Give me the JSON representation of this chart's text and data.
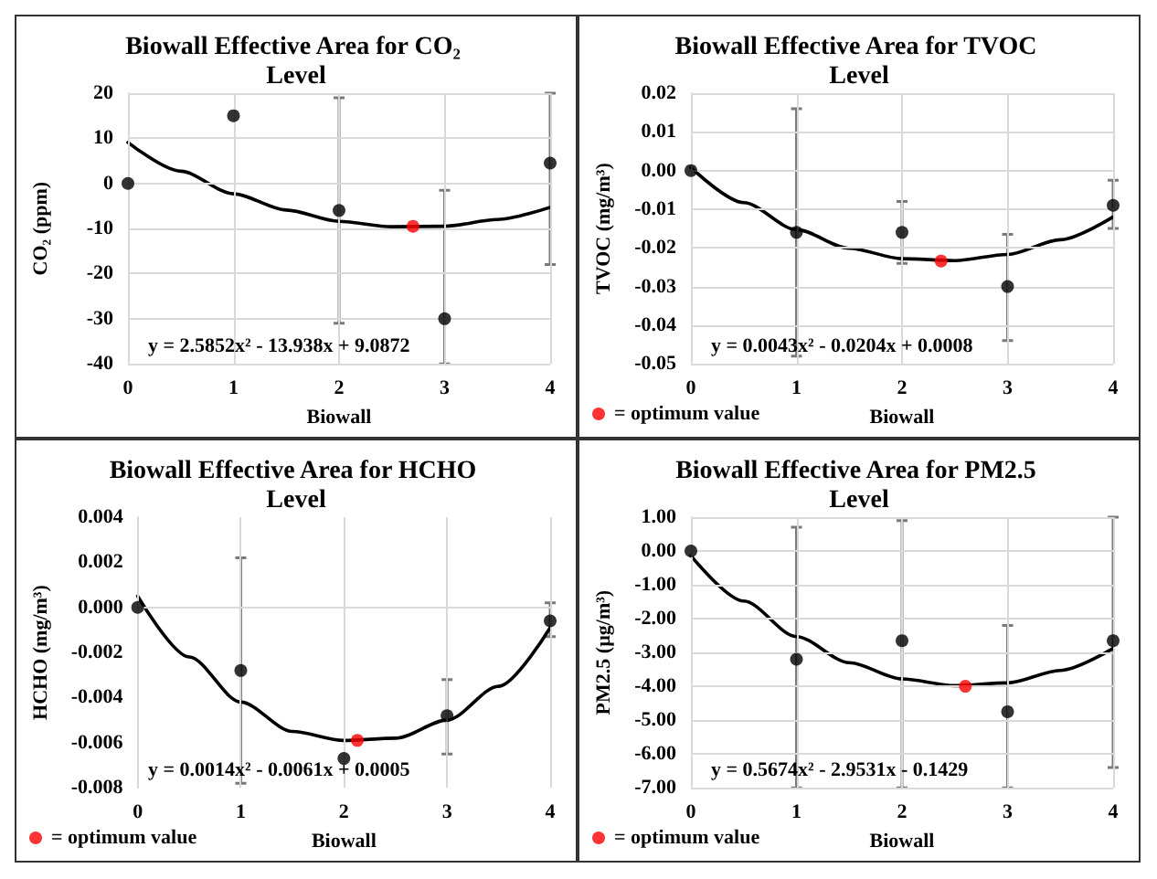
{
  "chart_data": [
    {
      "type": "scatter",
      "title": "Biowall Effective Area for CO₂ Level",
      "xlabel": "Biowall",
      "ylabel": "CO₂ (ppm)",
      "xlim": [
        0,
        4
      ],
      "xticks": [
        0,
        1,
        2,
        3,
        4
      ],
      "ylim": [
        -40,
        20
      ],
      "yticks": [
        -40,
        -30,
        -20,
        -10,
        0,
        10,
        20
      ],
      "grid": true,
      "legend": false,
      "annotations": [
        "y = 2.5852x² - 13.938x + 9.0872"
      ],
      "series": [
        {
          "type": "scatter",
          "color": "#000000",
          "marker": "circle",
          "x": [
            0,
            1,
            2,
            3,
            4
          ],
          "values": [
            0,
            15,
            -6,
            -30,
            4.5
          ],
          "errors": [
            null,
            null,
            [
              -31,
              19
            ],
            [
              -40,
              -1.5
            ],
            [
              -18,
              20
            ]
          ]
        },
        {
          "type": "line",
          "color": "#000000",
          "marker": "none",
          "line_style": "solid",
          "x": [
            0,
            0.5,
            1,
            1.5,
            2,
            2.5,
            3,
            3.5,
            4
          ],
          "values": [
            9.1,
            2.7,
            -2.3,
            -5.9,
            -8.4,
            -9.6,
            -9.5,
            -8.0,
            -5.3
          ]
        },
        {
          "type": "scatter",
          "color": "#ff0000",
          "marker": "circle",
          "x": [
            2.7
          ],
          "values": [
            -9.5
          ]
        }
      ]
    },
    {
      "type": "scatter",
      "title": "Biowall Effective Area for TVOC Level",
      "xlabel": "Biowall",
      "ylabel": "TVOC (mg/m³)",
      "xlim": [
        0,
        4
      ],
      "xticks": [
        0,
        1,
        2,
        3,
        4
      ],
      "ylim": [
        -0.05,
        0.02
      ],
      "yticks": [
        {
          "value": -0.05,
          "label": "-0.05"
        },
        {
          "value": -0.04,
          "label": "-0.04"
        },
        {
          "value": -0.03,
          "label": "-0.03"
        },
        {
          "value": -0.02,
          "label": "-0.02"
        },
        {
          "value": -0.01,
          "label": "-0.01"
        },
        {
          "value": 0,
          "label": "0.00"
        },
        {
          "value": 0.01,
          "label": "0.01"
        },
        {
          "value": 0.02,
          "label": "0.02"
        }
      ],
      "grid": true,
      "legend": "bottom left",
      "annotations": [
        "y = 0.0043x² - 0.0204x + 0.0008"
      ],
      "series": [
        {
          "type": "scatter",
          "color": "#000000",
          "marker": "circle",
          "x": [
            0,
            1,
            2,
            3,
            4
          ],
          "values": [
            0,
            -0.016,
            -0.016,
            -0.03,
            -0.009
          ],
          "errors": [
            null,
            [
              -0.048,
              0.016
            ],
            [
              -0.024,
              -0.008
            ],
            [
              -0.044,
              -0.0165
            ],
            [
              -0.015,
              -0.0025
            ]
          ]
        },
        {
          "type": "line",
          "color": "#000000",
          "marker": "none",
          "line_style": "solid",
          "x": [
            0,
            0.5,
            1,
            1.5,
            2,
            2.5,
            3,
            3.5,
            4
          ],
          "values": [
            0.0008,
            -0.0083,
            -0.0153,
            -0.0201,
            -0.0228,
            -0.0233,
            -0.0217,
            -0.0179,
            -0.012
          ]
        },
        {
          "type": "scatter",
          "name": "= optimum value",
          "color": "#ff0000",
          "marker": "circle",
          "x": [
            2.37
          ],
          "values": [
            -0.0234
          ]
        }
      ]
    },
    {
      "type": "scatter",
      "title": "Biowall Effective Area for HCHO Level",
      "xlabel": "Biowall",
      "ylabel": "HCHO (mg/m³)",
      "xlim": [
        0,
        4
      ],
      "xticks": [
        0,
        1,
        2,
        3,
        4
      ],
      "ylim": [
        -0.008,
        0.004
      ],
      "yticks": [
        {
          "value": -0.008,
          "label": "-0.008"
        },
        {
          "value": -0.006,
          "label": "-0.006"
        },
        {
          "value": -0.004,
          "label": "-0.004"
        },
        {
          "value": -0.002,
          "label": "-0.002"
        },
        {
          "value": 0,
          "label": "0.000"
        },
        {
          "value": 0.002,
          "label": "0.002"
        },
        {
          "value": 0.004,
          "label": "0.004"
        }
      ],
      "grid": true,
      "legend": "bottom left",
      "annotations": [
        "y = 0.0014x² - 0.0061x + 0.0005"
      ],
      "series": [
        {
          "type": "scatter",
          "color": "#000000",
          "marker": "circle",
          "x": [
            0,
            1,
            2,
            3,
            4
          ],
          "values": [
            0,
            -0.0028,
            -0.0067,
            -0.0048,
            -0.0006
          ],
          "errors": [
            null,
            [
              -0.0078,
              0.0022
            ],
            null,
            [
              -0.0065,
              -0.0032
            ],
            [
              -0.0013,
              0.0002
            ]
          ]
        },
        {
          "type": "line",
          "color": "#000000",
          "marker": "none",
          "line_style": "solid",
          "x": [
            0,
            0.5,
            1,
            1.5,
            2,
            2.5,
            3,
            3.5,
            4
          ],
          "values": [
            0.0005,
            -0.0022,
            -0.0042,
            -0.0055,
            -0.0059,
            -0.0058,
            -0.005,
            -0.0035,
            -0.0009
          ]
        },
        {
          "type": "scatter",
          "name": "= optimum value",
          "color": "#ff0000",
          "marker": "circle",
          "x": [
            2.13
          ],
          "values": [
            -0.0059
          ]
        }
      ]
    },
    {
      "type": "scatter",
      "title": "Biowall Effective Area for PM2.5 Level",
      "xlabel": "Biowall",
      "ylabel": "PM2.5 (µg/m³)",
      "xlim": [
        0,
        4
      ],
      "xticks": [
        0,
        1,
        2,
        3,
        4
      ],
      "ylim": [
        -7,
        1
      ],
      "yticks": [
        {
          "value": -7,
          "label": "-7.00"
        },
        {
          "value": -6,
          "label": "-6.00"
        },
        {
          "value": -5,
          "label": "-5.00"
        },
        {
          "value": -4,
          "label": "-4.00"
        },
        {
          "value": -3,
          "label": "-3.00"
        },
        {
          "value": -2,
          "label": "-2.00"
        },
        {
          "value": -1,
          "label": "-1.00"
        },
        {
          "value": 0,
          "label": "0.00"
        },
        {
          "value": 1,
          "label": "1.00"
        }
      ],
      "grid": true,
      "legend": "bottom left",
      "annotations": [
        "y = 0.5674x² - 2.9531x - 0.1429"
      ],
      "series": [
        {
          "type": "scatter",
          "color": "#000000",
          "marker": "circle",
          "x": [
            0,
            1,
            2,
            3,
            4
          ],
          "values": [
            0,
            -3.2,
            -2.65,
            -4.75,
            -2.65
          ],
          "errors": [
            null,
            [
              -7,
              0.7
            ],
            [
              -7,
              0.9
            ],
            [
              -7,
              -2.2
            ],
            [
              -6.4,
              1
            ]
          ]
        },
        {
          "type": "line",
          "color": "#000000",
          "marker": "none",
          "line_style": "solid",
          "x": [
            0,
            0.5,
            1,
            1.5,
            2,
            2.5,
            3,
            3.5,
            4
          ],
          "values": [
            -0.14,
            -1.48,
            -2.53,
            -3.3,
            -3.78,
            -3.98,
            -3.9,
            -3.53,
            -2.88
          ]
        },
        {
          "type": "scatter",
          "name": "= optimum value",
          "color": "#ff0000",
          "marker": "circle",
          "x": [
            2.6
          ],
          "values": [
            -4.0
          ]
        }
      ]
    }
  ]
}
